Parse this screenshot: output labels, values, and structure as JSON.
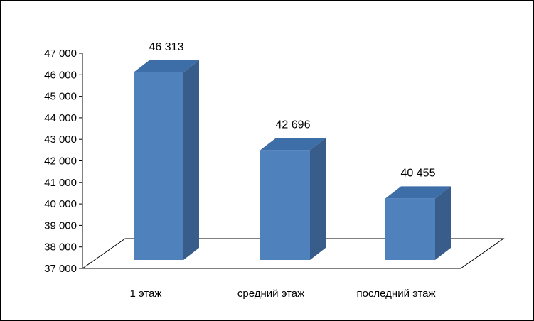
{
  "chart_data": {
    "type": "bar",
    "style": "3d-column",
    "categories": [
      "1 этаж",
      "средний этаж",
      "последний этаж"
    ],
    "values": [
      46313,
      42696,
      40455
    ],
    "data_labels": [
      "46 313",
      "42 696",
      "40 455"
    ],
    "y_ticks": [
      "37 000",
      "38 000",
      "39 000",
      "40 000",
      "41 000",
      "42 000",
      "43 000",
      "44 000",
      "45 000",
      "46 000",
      "47 000"
    ],
    "ylim": [
      37000,
      47000
    ],
    "grid": false,
    "legend": "none",
    "colors": {
      "bar_front": "#4F81BD",
      "bar_side": "#385D8A",
      "bar_top": "#3E6EA8",
      "axis": "#000000",
      "floor": "#000000"
    }
  }
}
